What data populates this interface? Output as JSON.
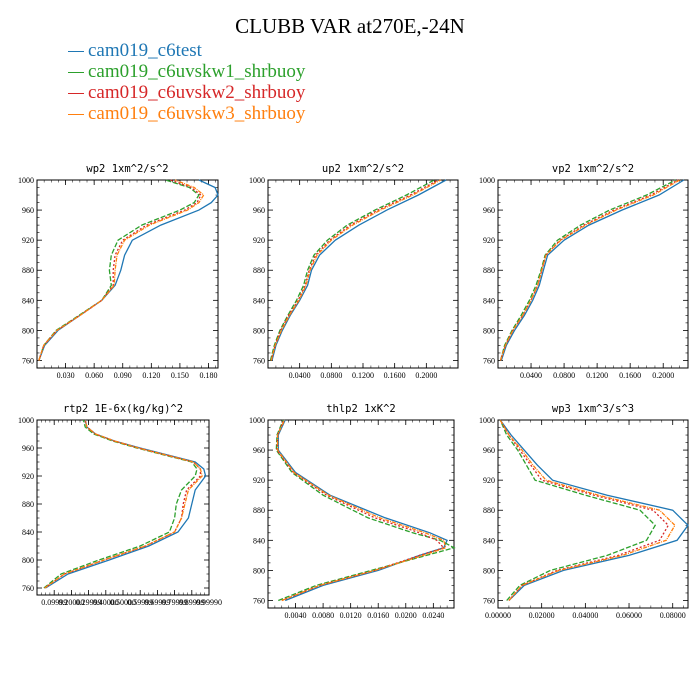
{
  "title": "CLUBB VAR at270E,-24N",
  "legend": [
    {
      "name": "cam019_c6test",
      "color": "#1f77b4"
    },
    {
      "name": "cam019_c6uvskw1_shrbuoy",
      "color": "#2ca02c"
    },
    {
      "name": "cam019_c6uvskw2_shrbuoy",
      "color": "#d62728"
    },
    {
      "name": "cam019_c6uvskw3_shrbuoy",
      "color": "#ff7f0e"
    }
  ],
  "chart_data": [
    {
      "type": "line",
      "title": "wp2  1xm^2/s^2",
      "ylim": [
        1000,
        750
      ],
      "yticks": [
        760,
        800,
        840,
        880,
        920,
        960,
        1000
      ],
      "xlim": [
        0.0,
        0.19
      ],
      "xticks": [
        0.03,
        0.06,
        0.09,
        0.12,
        0.15,
        0.18
      ],
      "xtick_labels": [
        "0.030",
        "0.060",
        "0.090",
        "0.120",
        "0.150",
        "0.180"
      ],
      "y": [
        760,
        780,
        800,
        820,
        840,
        860,
        880,
        900,
        920,
        940,
        960,
        970,
        980,
        990,
        1000
      ],
      "series": [
        {
          "name": "cam019_c6test",
          "x": [
            0.002,
            0.008,
            0.022,
            0.045,
            0.068,
            0.082,
            0.088,
            0.092,
            0.1,
            0.13,
            0.17,
            0.183,
            0.19,
            0.187,
            0.17
          ]
        },
        {
          "name": "cam019_c6uvskw1_shrbuoy",
          "x": [
            0.002,
            0.007,
            0.02,
            0.044,
            0.068,
            0.078,
            0.076,
            0.078,
            0.085,
            0.11,
            0.15,
            0.165,
            0.17,
            0.16,
            0.135
          ]
        },
        {
          "name": "cam019_c6uvskw2_shrbuoy",
          "x": [
            0.002,
            0.007,
            0.021,
            0.045,
            0.068,
            0.08,
            0.08,
            0.082,
            0.09,
            0.115,
            0.155,
            0.168,
            0.172,
            0.162,
            0.14
          ]
        },
        {
          "name": "cam019_c6uvskw3_shrbuoy",
          "x": [
            0.002,
            0.007,
            0.021,
            0.045,
            0.068,
            0.081,
            0.082,
            0.084,
            0.092,
            0.118,
            0.158,
            0.17,
            0.175,
            0.165,
            0.145
          ]
        }
      ]
    },
    {
      "type": "line",
      "title": "up2  1xm^2/s^2",
      "ylim": [
        1000,
        750
      ],
      "yticks": [
        760,
        800,
        840,
        880,
        920,
        960,
        1000
      ],
      "xlim": [
        0.0,
        0.24
      ],
      "xticks": [
        0.04,
        0.08,
        0.12,
        0.16,
        0.2
      ],
      "xtick_labels": [
        "0.0400",
        "0.0800",
        "0.1200",
        "0.1600",
        "0.2000"
      ],
      "y": [
        760,
        780,
        800,
        820,
        840,
        860,
        880,
        900,
        920,
        940,
        960,
        980,
        1000
      ],
      "series": [
        {
          "name": "cam019_c6test",
          "x": [
            0.005,
            0.01,
            0.018,
            0.028,
            0.04,
            0.05,
            0.055,
            0.065,
            0.085,
            0.115,
            0.15,
            0.19,
            0.225
          ]
        },
        {
          "name": "cam019_c6uvskw1_shrbuoy",
          "x": [
            0.003,
            0.008,
            0.015,
            0.025,
            0.036,
            0.045,
            0.05,
            0.058,
            0.075,
            0.1,
            0.135,
            0.175,
            0.21
          ]
        },
        {
          "name": "cam019_c6uvskw2_shrbuoy",
          "x": [
            0.004,
            0.009,
            0.016,
            0.026,
            0.038,
            0.047,
            0.052,
            0.06,
            0.078,
            0.104,
            0.139,
            0.18,
            0.215
          ]
        },
        {
          "name": "cam019_c6uvskw3_shrbuoy",
          "x": [
            0.004,
            0.009,
            0.017,
            0.027,
            0.039,
            0.048,
            0.053,
            0.062,
            0.08,
            0.107,
            0.142,
            0.183,
            0.218
          ]
        }
      ]
    },
    {
      "type": "line",
      "title": "vp2  1xm^2/s^2",
      "ylim": [
        1000,
        750
      ],
      "yticks": [
        760,
        800,
        840,
        880,
        920,
        960,
        1000
      ],
      "xlim": [
        0.0,
        0.23
      ],
      "xticks": [
        0.04,
        0.08,
        0.12,
        0.16,
        0.2
      ],
      "xtick_labels": [
        "0.0400",
        "0.0800",
        "0.1200",
        "0.1600",
        "0.2000"
      ],
      "y": [
        760,
        780,
        800,
        820,
        840,
        860,
        880,
        900,
        920,
        940,
        960,
        980,
        1000
      ],
      "series": [
        {
          "name": "cam019_c6test",
          "x": [
            0.004,
            0.01,
            0.02,
            0.032,
            0.042,
            0.05,
            0.055,
            0.06,
            0.08,
            0.11,
            0.15,
            0.195,
            0.225
          ]
        },
        {
          "name": "cam019_c6uvskw1_shrbuoy",
          "x": [
            0.003,
            0.008,
            0.017,
            0.028,
            0.038,
            0.046,
            0.052,
            0.057,
            0.072,
            0.1,
            0.135,
            0.18,
            0.215
          ]
        },
        {
          "name": "cam019_c6uvskw2_shrbuoy",
          "x": [
            0.003,
            0.009,
            0.018,
            0.03,
            0.04,
            0.048,
            0.053,
            0.058,
            0.075,
            0.104,
            0.14,
            0.185,
            0.218
          ]
        },
        {
          "name": "cam019_c6uvskw3_shrbuoy",
          "x": [
            0.003,
            0.009,
            0.018,
            0.03,
            0.04,
            0.048,
            0.053,
            0.058,
            0.076,
            0.106,
            0.143,
            0.188,
            0.22
          ]
        }
      ]
    },
    {
      "type": "line",
      "title": "rtp2  1E-6x(kg/kg)^2",
      "ylim": [
        1000,
        750
      ],
      "yticks": [
        760,
        800,
        840,
        880,
        920,
        960,
        1000
      ],
      "xlim": [
        0.0,
        1.0
      ],
      "xticks": [
        0.1,
        0.2,
        0.3,
        0.4,
        0.5,
        0.6,
        0.7,
        0.8,
        0.9,
        1.0
      ],
      "xtick_labels": [
        "0.09999",
        "0.20000",
        "0.29999",
        "0.40000",
        "0.50000",
        "0.59999",
        "0.69999",
        "0.79999",
        "0.89999",
        "0.99990"
      ],
      "y": [
        760,
        780,
        800,
        820,
        840,
        860,
        880,
        900,
        920,
        930,
        940,
        960,
        970,
        980,
        990,
        1000
      ],
      "series": [
        {
          "name": "cam019_c6test",
          "x": [
            0.05,
            0.18,
            0.42,
            0.65,
            0.82,
            0.88,
            0.9,
            0.92,
            0.98,
            0.97,
            0.92,
            0.6,
            0.45,
            0.34,
            0.29,
            0.28
          ]
        },
        {
          "name": "cam019_c6uvskw1_shrbuoy",
          "x": [
            0.04,
            0.14,
            0.36,
            0.6,
            0.77,
            0.8,
            0.81,
            0.84,
            0.92,
            0.93,
            0.9,
            0.58,
            0.44,
            0.33,
            0.28,
            0.27
          ]
        },
        {
          "name": "cam019_c6uvskw2_shrbuoy",
          "x": [
            0.045,
            0.16,
            0.39,
            0.63,
            0.8,
            0.84,
            0.85,
            0.87,
            0.95,
            0.95,
            0.91,
            0.59,
            0.45,
            0.34,
            0.29,
            0.28
          ]
        },
        {
          "name": "cam019_c6uvskw3_shrbuoy",
          "x": [
            0.045,
            0.16,
            0.39,
            0.63,
            0.8,
            0.84,
            0.86,
            0.88,
            0.96,
            0.95,
            0.91,
            0.59,
            0.45,
            0.34,
            0.29,
            0.28
          ]
        }
      ]
    },
    {
      "type": "line",
      "title": "thlp2  1xK^2",
      "ylim": [
        1000,
        750
      ],
      "yticks": [
        760,
        800,
        840,
        880,
        920,
        960,
        1000
      ],
      "xlim": [
        0.0,
        0.027
      ],
      "xticks": [
        0.004,
        0.008,
        0.012,
        0.016,
        0.02,
        0.024
      ],
      "xtick_labels": [
        "0.0040",
        "0.0080",
        "0.0120",
        "0.0160",
        "0.0200",
        "0.0240"
      ],
      "y": [
        760,
        780,
        800,
        820,
        830,
        840,
        850,
        870,
        900,
        930,
        960,
        980,
        1000
      ],
      "series": [
        {
          "name": "cam019_c6test",
          "x": [
            0.0025,
            0.008,
            0.016,
            0.022,
            0.0255,
            0.026,
            0.0235,
            0.017,
            0.009,
            0.004,
            0.0015,
            0.0015,
            0.0025
          ]
        },
        {
          "name": "cam019_c6uvskw1_shrbuoy",
          "x": [
            0.0015,
            0.007,
            0.015,
            0.023,
            0.027,
            0.025,
            0.021,
            0.0145,
            0.008,
            0.0035,
            0.0012,
            0.0013,
            0.0022
          ]
        },
        {
          "name": "cam019_c6uvskw2_shrbuoy",
          "x": [
            0.002,
            0.0075,
            0.0155,
            0.022,
            0.0255,
            0.0245,
            0.022,
            0.0155,
            0.0085,
            0.0037,
            0.0013,
            0.0014,
            0.0023
          ]
        },
        {
          "name": "cam019_c6uvskw3_shrbuoy",
          "x": [
            0.002,
            0.0075,
            0.0155,
            0.0225,
            0.0258,
            0.0255,
            0.0228,
            0.0162,
            0.0088,
            0.0038,
            0.0014,
            0.0014,
            0.0024
          ]
        }
      ]
    },
    {
      "type": "line",
      "title": "wp3  1xm^3/s^3",
      "ylim": [
        1000,
        750
      ],
      "yticks": [
        760,
        800,
        840,
        880,
        920,
        960,
        1000
      ],
      "xlim": [
        0.0,
        0.087
      ],
      "xticks": [
        0.0,
        0.02,
        0.04,
        0.06,
        0.08
      ],
      "xtick_labels": [
        "0.00000",
        "0.02000",
        "0.04000",
        "0.06000",
        "0.08000"
      ],
      "y": [
        760,
        780,
        800,
        820,
        840,
        860,
        880,
        900,
        920,
        940,
        960,
        980,
        1000
      ],
      "series": [
        {
          "name": "cam019_c6test",
          "x": [
            0.005,
            0.012,
            0.03,
            0.06,
            0.082,
            0.087,
            0.08,
            0.05,
            0.025,
            0.018,
            0.012,
            0.006,
            0.001
          ]
        },
        {
          "name": "cam019_c6uvskw1_shrbuoy",
          "x": [
            0.004,
            0.01,
            0.024,
            0.05,
            0.068,
            0.072,
            0.065,
            0.04,
            0.017,
            0.013,
            0.009,
            0.004,
            0.001
          ]
        },
        {
          "name": "cam019_c6uvskw2_shrbuoy",
          "x": [
            0.005,
            0.011,
            0.027,
            0.055,
            0.074,
            0.078,
            0.071,
            0.044,
            0.02,
            0.015,
            0.01,
            0.005,
            0.001
          ]
        },
        {
          "name": "cam019_c6uvskw3_shrbuoy",
          "x": [
            0.005,
            0.011,
            0.028,
            0.057,
            0.077,
            0.081,
            0.074,
            0.046,
            0.022,
            0.016,
            0.011,
            0.005,
            0.001
          ]
        }
      ]
    }
  ]
}
